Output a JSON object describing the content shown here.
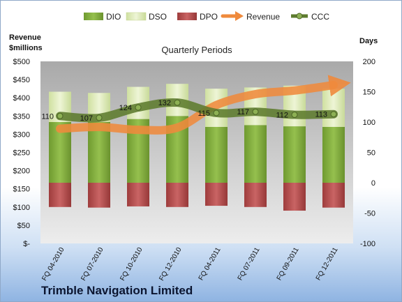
{
  "chart_data": {
    "type": "bar",
    "title": "Quarterly Periods",
    "footer": "Trimble Navigation Limited",
    "left_axis": {
      "label_line1": "Revenue",
      "label_line2": "$millions",
      "min": 0,
      "max": 500,
      "tick_labels": [
        "$-",
        "$50",
        "$100",
        "$150",
        "$200",
        "$250",
        "$300",
        "$350",
        "$400",
        "$450",
        "$500"
      ]
    },
    "right_axis": {
      "label": "Days",
      "min": -100,
      "max": 200,
      "tick_labels": [
        "-100",
        "-50",
        "0",
        "50",
        "100",
        "150",
        "200"
      ]
    },
    "categories": [
      "FQ 04-2010",
      "FQ 07-2010",
      "FQ 10-2010",
      "FQ 12-2010",
      "FQ 04-2011",
      "FQ 07-2011",
      "FQ 09-2011",
      "FQ 12-2011"
    ],
    "series": [
      {
        "name": "DIO",
        "axis": "days",
        "values": [
          100,
          100,
          105,
          110,
          92,
          95,
          93,
          92
        ],
        "color": "#7fa83c"
      },
      {
        "name": "DSO",
        "axis": "days",
        "values": [
          50,
          48,
          53,
          53,
          63,
          62,
          67,
          63
        ],
        "color": "#dbe8b4"
      },
      {
        "name": "DPO",
        "axis": "days",
        "values": [
          -40,
          -41,
          -39,
          -40,
          -38,
          -40,
          -46,
          -41
        ],
        "color": "#b85050"
      },
      {
        "name": "Revenue",
        "axis": "revenue",
        "values": [
          315,
          320,
          312,
          318,
          380,
          410,
          420,
          435
        ],
        "color": "#ef8a3c"
      },
      {
        "name": "CCC",
        "axis": "days",
        "values": [
          110,
          107,
          124,
          132,
          115,
          117,
          112,
          113
        ],
        "labels": [
          "110",
          "107",
          "124",
          "132",
          "115",
          "117",
          "112",
          "113"
        ],
        "color": "#5d7b2e"
      }
    ],
    "grid": false,
    "legend_position": "top"
  }
}
